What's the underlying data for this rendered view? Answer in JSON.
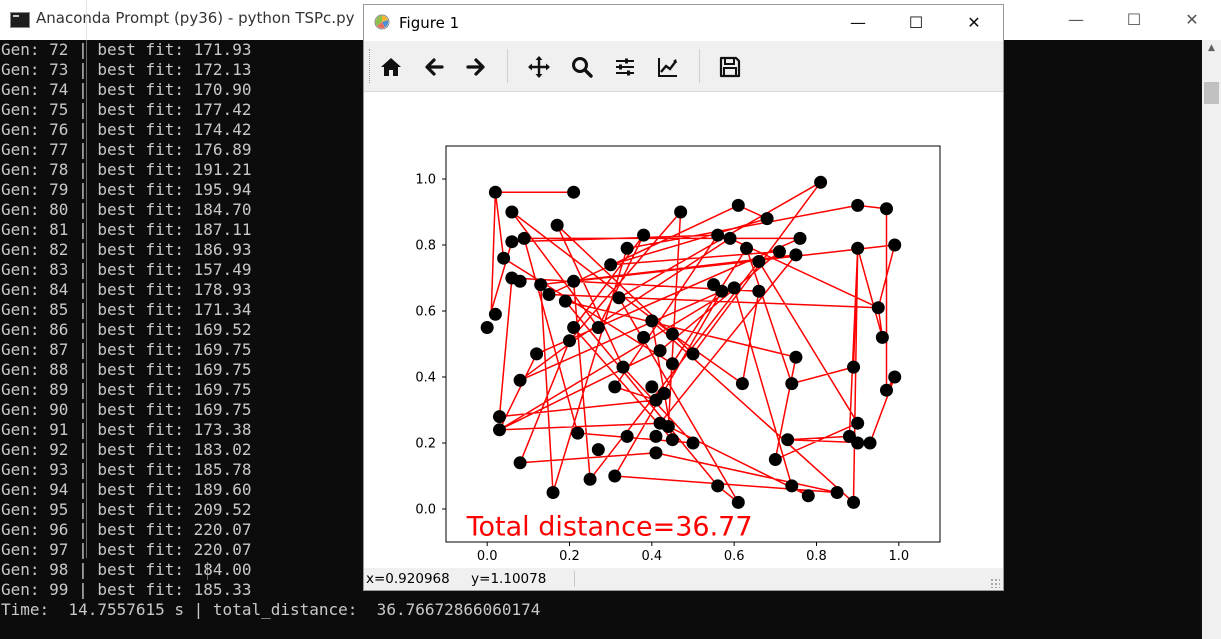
{
  "console": {
    "title": "Anaconda Prompt (py36) - python  TSPc.py",
    "controls": [
      "—",
      "☐",
      "✕"
    ],
    "lines": [
      "Gen: 72 | best fit: 171.93",
      "Gen: 73 | best fit: 172.13",
      "Gen: 74 | best fit: 170.90",
      "Gen: 75 | best fit: 177.42",
      "Gen: 76 | best fit: 174.42",
      "Gen: 77 | best fit: 176.89",
      "Gen: 78 | best fit: 191.21",
      "Gen: 79 | best fit: 195.94",
      "Gen: 80 | best fit: 184.70",
      "Gen: 81 | best fit: 187.11",
      "Gen: 82 | best fit: 186.93",
      "Gen: 83 | best fit: 157.49",
      "Gen: 84 | best fit: 178.93",
      "Gen: 85 | best fit: 171.34",
      "Gen: 86 | best fit: 169.52",
      "Gen: 87 | best fit: 169.75",
      "Gen: 88 | best fit: 169.75",
      "Gen: 89 | best fit: 169.75",
      "Gen: 90 | best fit: 169.75",
      "Gen: 91 | best fit: 173.38",
      "Gen: 92 | best fit: 183.02",
      "Gen: 93 | best fit: 185.78",
      "Gen: 94 | best fit: 189.60",
      "Gen: 95 | best fit: 209.52",
      "Gen: 96 | best fit: 220.07",
      "Gen: 97 | best fit: 220.07",
      "Gen: 98 | best fit: 184.00",
      "Gen: 99 | best fit: 185.33",
      "Time:  14.7557615 s | total_distance:  36.76672866060174"
    ]
  },
  "figure": {
    "title": "Figure 1",
    "controls": [
      "—",
      "☐",
      "✕"
    ],
    "toolbar": [
      {
        "name": "home-icon",
        "tip": "Home"
      },
      {
        "name": "back-arrow-icon",
        "tip": "Back"
      },
      {
        "name": "forward-arrow-icon",
        "tip": "Forward"
      },
      {
        "name": "pan-icon",
        "tip": "Pan"
      },
      {
        "name": "zoom-icon",
        "tip": "Zoom"
      },
      {
        "name": "subplots-icon",
        "tip": "Subplots"
      },
      {
        "name": "customize-icon",
        "tip": "Customize"
      },
      {
        "name": "save-icon",
        "tip": "Save"
      }
    ],
    "status": "x=0.920968     y=1.10078"
  },
  "chart_data": {
    "type": "scatter",
    "annotation": "Total distance=36.77",
    "xlim": [
      -0.1,
      1.1
    ],
    "ylim": [
      -0.1,
      1.1
    ],
    "xticks": [
      "0.0",
      "0.2",
      "0.4",
      "0.6",
      "0.8",
      "1.0"
    ],
    "yticks": [
      "0.0",
      "0.2",
      "0.4",
      "0.6",
      "0.8",
      "1.0"
    ],
    "point_color": "#000000",
    "line_color": "#ff0000",
    "annotation_color": "#ff0000",
    "points": [
      [
        0.02,
        0.96
      ],
      [
        0.21,
        0.96
      ],
      [
        0.81,
        0.99
      ],
      [
        0.06,
        0.9
      ],
      [
        0.47,
        0.9
      ],
      [
        0.61,
        0.92
      ],
      [
        0.68,
        0.88
      ],
      [
        0.9,
        0.92
      ],
      [
        0.97,
        0.91
      ],
      [
        0.17,
        0.86
      ],
      [
        0.06,
        0.81
      ],
      [
        0.09,
        0.82
      ],
      [
        0.38,
        0.83
      ],
      [
        0.56,
        0.83
      ],
      [
        0.59,
        0.82
      ],
      [
        0.63,
        0.79
      ],
      [
        0.71,
        0.78
      ],
      [
        0.76,
        0.82
      ],
      [
        0.9,
        0.79
      ],
      [
        0.99,
        0.8
      ],
      [
        0.04,
        0.76
      ],
      [
        0.34,
        0.79
      ],
      [
        0.3,
        0.74
      ],
      [
        0.66,
        0.75
      ],
      [
        0.75,
        0.77
      ],
      [
        0.06,
        0.7
      ],
      [
        0.08,
        0.69
      ],
      [
        0.13,
        0.68
      ],
      [
        0.21,
        0.69
      ],
      [
        0.15,
        0.65
      ],
      [
        0.55,
        0.68
      ],
      [
        0.57,
        0.66
      ],
      [
        0.6,
        0.67
      ],
      [
        0.66,
        0.66
      ],
      [
        0.02,
        0.59
      ],
      [
        0.19,
        0.63
      ],
      [
        0.32,
        0.64
      ],
      [
        0.95,
        0.61
      ],
      [
        0.0,
        0.55
      ],
      [
        0.21,
        0.55
      ],
      [
        0.27,
        0.55
      ],
      [
        0.4,
        0.57
      ],
      [
        0.2,
        0.51
      ],
      [
        0.38,
        0.52
      ],
      [
        0.45,
        0.53
      ],
      [
        0.96,
        0.52
      ],
      [
        0.12,
        0.47
      ],
      [
        0.42,
        0.48
      ],
      [
        0.5,
        0.47
      ],
      [
        0.33,
        0.43
      ],
      [
        0.45,
        0.44
      ],
      [
        0.75,
        0.46
      ],
      [
        0.08,
        0.39
      ],
      [
        0.31,
        0.37
      ],
      [
        0.4,
        0.37
      ],
      [
        0.62,
        0.38
      ],
      [
        0.74,
        0.38
      ],
      [
        0.89,
        0.43
      ],
      [
        0.99,
        0.4
      ],
      [
        0.41,
        0.33
      ],
      [
        0.43,
        0.35
      ],
      [
        0.97,
        0.36
      ],
      [
        0.03,
        0.28
      ],
      [
        0.42,
        0.26
      ],
      [
        0.44,
        0.25
      ],
      [
        0.03,
        0.24
      ],
      [
        0.22,
        0.23
      ],
      [
        0.34,
        0.22
      ],
      [
        0.41,
        0.22
      ],
      [
        0.45,
        0.21
      ],
      [
        0.5,
        0.2
      ],
      [
        0.73,
        0.21
      ],
      [
        0.88,
        0.22
      ],
      [
        0.9,
        0.26
      ],
      [
        0.9,
        0.2
      ],
      [
        0.93,
        0.2
      ],
      [
        0.27,
        0.18
      ],
      [
        0.41,
        0.17
      ],
      [
        0.08,
        0.14
      ],
      [
        0.7,
        0.15
      ],
      [
        0.25,
        0.09
      ],
      [
        0.31,
        0.1
      ],
      [
        0.56,
        0.07
      ],
      [
        0.74,
        0.07
      ],
      [
        0.16,
        0.05
      ],
      [
        0.78,
        0.04
      ],
      [
        0.85,
        0.05
      ],
      [
        0.61,
        0.02
      ],
      [
        0.89,
        0.02
      ]
    ],
    "route": [
      [
        0.02,
        0.96
      ],
      [
        0.21,
        0.96
      ],
      [
        0.02,
        0.96
      ],
      [
        0.01,
        0.6
      ],
      [
        0.06,
        0.81
      ],
      [
        0.56,
        0.83
      ],
      [
        0.31,
        0.37
      ],
      [
        0.41,
        0.33
      ],
      [
        0.03,
        0.28
      ],
      [
        0.06,
        0.7
      ],
      [
        0.66,
        0.66
      ],
      [
        0.62,
        0.38
      ],
      [
        0.45,
        0.53
      ],
      [
        0.06,
        0.9
      ],
      [
        0.27,
        0.55
      ],
      [
        0.38,
        0.83
      ],
      [
        0.21,
        0.55
      ],
      [
        0.45,
        0.21
      ],
      [
        0.4,
        0.57
      ],
      [
        0.89,
        0.02
      ],
      [
        0.9,
        0.79
      ],
      [
        0.88,
        0.22
      ],
      [
        0.73,
        0.21
      ],
      [
        0.93,
        0.2
      ],
      [
        0.99,
        0.4
      ],
      [
        0.97,
        0.36
      ],
      [
        0.97,
        0.91
      ],
      [
        0.9,
        0.92
      ],
      [
        0.34,
        0.79
      ],
      [
        0.16,
        0.05
      ],
      [
        0.13,
        0.68
      ],
      [
        0.75,
        0.77
      ],
      [
        0.42,
        0.26
      ],
      [
        0.03,
        0.24
      ],
      [
        0.12,
        0.47
      ],
      [
        0.76,
        0.82
      ],
      [
        0.09,
        0.82
      ],
      [
        0.22,
        0.23
      ],
      [
        0.5,
        0.2
      ],
      [
        0.33,
        0.43
      ],
      [
        0.17,
        0.86
      ],
      [
        0.5,
        0.47
      ],
      [
        0.81,
        0.99
      ],
      [
        0.32,
        0.64
      ],
      [
        0.61,
        0.02
      ],
      [
        0.56,
        0.07
      ],
      [
        0.19,
        0.63
      ],
      [
        0.75,
        0.46
      ],
      [
        0.7,
        0.15
      ],
      [
        0.9,
        0.26
      ],
      [
        0.66,
        0.75
      ],
      [
        0.25,
        0.09
      ],
      [
        0.21,
        0.69
      ],
      [
        0.99,
        0.8
      ],
      [
        0.95,
        0.61
      ],
      [
        0.59,
        0.82
      ],
      [
        0.21,
        0.51
      ],
      [
        0.08,
        0.39
      ],
      [
        0.57,
        0.66
      ],
      [
        0.31,
        0.1
      ],
      [
        0.85,
        0.05
      ],
      [
        0.41,
        0.17
      ],
      [
        0.08,
        0.14
      ],
      [
        0.2,
        0.51
      ],
      [
        0.47,
        0.9
      ],
      [
        0.44,
        0.25
      ],
      [
        0.78,
        0.04
      ],
      [
        0.74,
        0.07
      ],
      [
        0.6,
        0.67
      ],
      [
        0.03,
        0.24
      ],
      [
        0.42,
        0.48
      ],
      [
        0.71,
        0.78
      ],
      [
        0.3,
        0.74
      ],
      [
        0.68,
        0.88
      ],
      [
        0.61,
        0.92
      ],
      [
        0.15,
        0.65
      ],
      [
        0.95,
        0.61
      ],
      [
        0.96,
        0.52
      ],
      [
        0.9,
        0.79
      ],
      [
        0.89,
        0.43
      ],
      [
        0.74,
        0.38
      ],
      [
        0.63,
        0.79
      ],
      [
        0.45,
        0.44
      ],
      [
        0.04,
        0.76
      ],
      [
        0.02,
        0.96
      ]
    ]
  }
}
